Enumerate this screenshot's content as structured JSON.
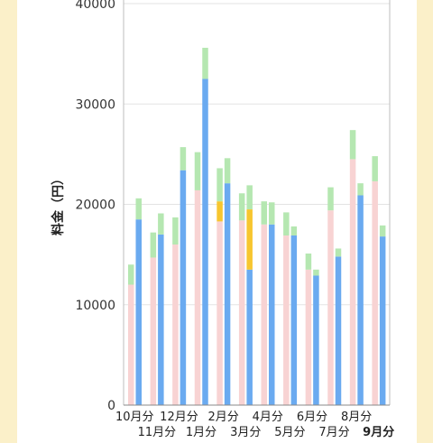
{
  "chart_data": {
    "type": "bar",
    "stacked": true,
    "ylabel": "料金（円）",
    "ylim": [
      0,
      40000
    ],
    "y_ticks": [
      0,
      10000,
      20000,
      30000,
      40000
    ],
    "y_tick_labels": [
      "0",
      "10000",
      "20000",
      "30000",
      "40000"
    ],
    "grid": true,
    "month_labels": [
      "10月分",
      "11月分",
      "12月分",
      "1月分",
      "2月分",
      "3月分",
      "4月分",
      "5月分",
      "6月分",
      "7月分",
      "8月分",
      "9月分"
    ],
    "highlight_month": "9月分",
    "bars_per_month": 2,
    "colors": {
      "base_pink": "#f8d3d3",
      "base_blue": "#6aaaf0",
      "green": "#b5e7b1",
      "yellow": "#f7c62f"
    },
    "bars": [
      {
        "month": "10月分",
        "base": 12000,
        "base_color": "pink",
        "yellow": 0,
        "green": 2000
      },
      {
        "month": "10月分",
        "base": 18500,
        "base_color": "blue",
        "yellow": 0,
        "green": 2100
      },
      {
        "month": "11月分",
        "base": 14700,
        "base_color": "pink",
        "yellow": 0,
        "green": 2500
      },
      {
        "month": "11月分",
        "base": 17000,
        "base_color": "blue",
        "yellow": 0,
        "green": 2100
      },
      {
        "month": "12月分",
        "base": 16000,
        "base_color": "pink",
        "yellow": 0,
        "green": 2700
      },
      {
        "month": "12月分",
        "base": 23400,
        "base_color": "blue",
        "yellow": 0,
        "green": 2300
      },
      {
        "month": "1月分",
        "base": 21400,
        "base_color": "pink",
        "yellow": 0,
        "green": 3800
      },
      {
        "month": "1月分",
        "base": 32500,
        "base_color": "blue",
        "yellow": 0,
        "green": 3100
      },
      {
        "month": "2月分",
        "base": 18300,
        "base_color": "pink",
        "yellow": 2000,
        "green": 3300
      },
      {
        "month": "2月分",
        "base": 22100,
        "base_color": "blue",
        "yellow": 0,
        "green": 2500
      },
      {
        "month": "3月分",
        "base": 18400,
        "base_color": "pink",
        "yellow": 0,
        "green": 2700
      },
      {
        "month": "3月分",
        "base": 13500,
        "base_color": "blue",
        "yellow": 6000,
        "green": 2400
      },
      {
        "month": "4月分",
        "base": 18000,
        "base_color": "pink",
        "yellow": 0,
        "green": 2300
      },
      {
        "month": "4月分",
        "base": 18000,
        "base_color": "blue",
        "yellow": 0,
        "green": 2200
      },
      {
        "month": "5月分",
        "base": 16900,
        "base_color": "pink",
        "yellow": 0,
        "green": 2300
      },
      {
        "month": "5月分",
        "base": 16900,
        "base_color": "blue",
        "yellow": 0,
        "green": 900
      },
      {
        "month": "6月分",
        "base": 13500,
        "base_color": "pink",
        "yellow": 0,
        "green": 1600
      },
      {
        "month": "6月分",
        "base": 12900,
        "base_color": "blue",
        "yellow": 0,
        "green": 600
      },
      {
        "month": "7月分",
        "base": 19400,
        "base_color": "pink",
        "yellow": 0,
        "green": 2300
      },
      {
        "month": "7月分",
        "base": 14800,
        "base_color": "blue",
        "yellow": 0,
        "green": 800
      },
      {
        "month": "8月分",
        "base": 24500,
        "base_color": "pink",
        "yellow": 0,
        "green": 2900
      },
      {
        "month": "8月分",
        "base": 20900,
        "base_color": "blue",
        "yellow": 0,
        "green": 1200
      },
      {
        "month": "9月分",
        "base": 22300,
        "base_color": "pink",
        "yellow": 0,
        "green": 2500
      },
      {
        "month": "9月分",
        "base": 16800,
        "base_color": "blue",
        "yellow": 0,
        "green": 1100
      }
    ]
  }
}
